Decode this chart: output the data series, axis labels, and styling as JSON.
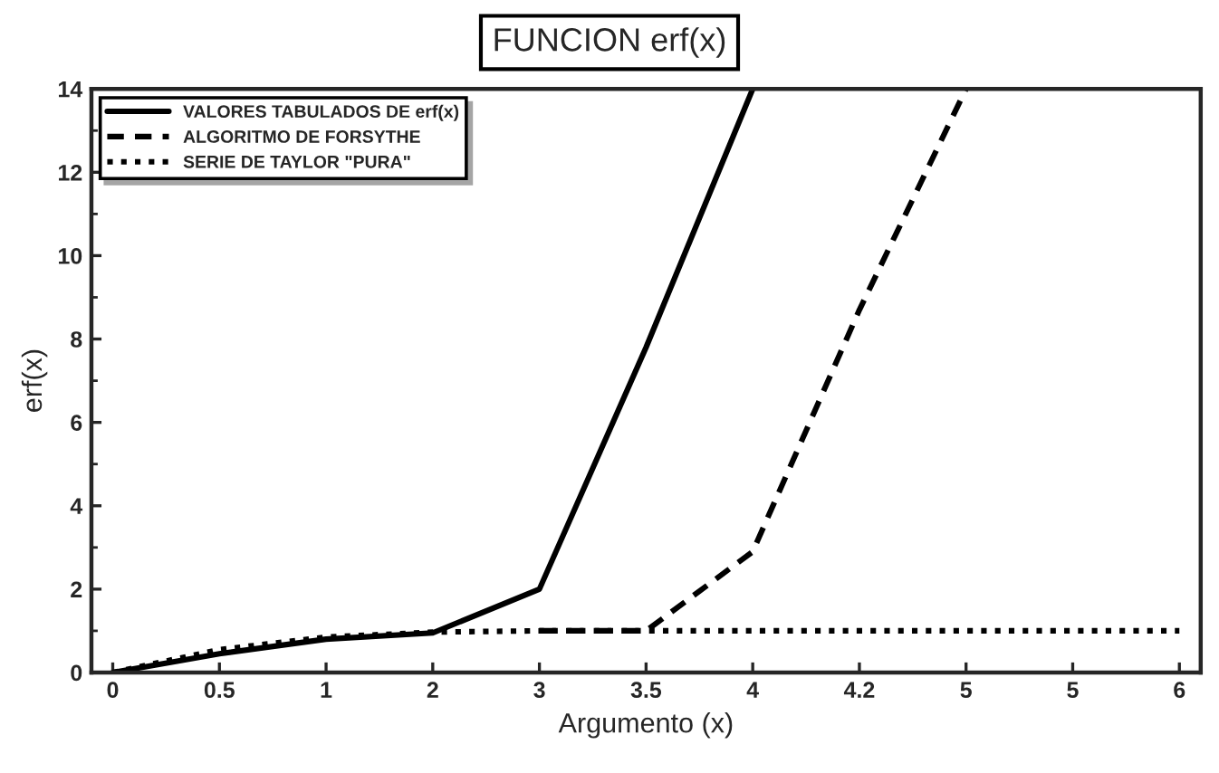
{
  "chart_data": {
    "type": "line",
    "title": "FUNCION erf(x)",
    "xlabel": "Argumento (x)",
    "ylabel": "erf(x)",
    "categories": [
      "0",
      "0.5",
      "1",
      "2",
      "3",
      "3.5",
      "4",
      "4.2",
      "5",
      "5",
      "6"
    ],
    "ylim": [
      0,
      14
    ],
    "yticks": [
      0,
      2,
      4,
      6,
      8,
      10,
      12,
      14
    ],
    "grid": false,
    "legend": "top left",
    "marker": "none",
    "series": [
      {
        "name": "VALORES TABULADOS DE erf(x)",
        "color": "#000000",
        "line_style": "solid",
        "values": [
          0,
          0.45,
          0.8,
          0.95,
          2.0,
          7.8,
          14,
          null,
          null,
          null,
          null
        ]
      },
      {
        "name": "ALGORITMO DE FORSYTHE",
        "color": "#000000",
        "line_style": "dashed",
        "values": [
          null,
          null,
          null,
          null,
          1.0,
          1.0,
          2.9,
          8.7,
          14,
          null,
          null
        ]
      },
      {
        "name": "SERIE DE TAYLOR \"PURA\"",
        "color": "#000000",
        "line_style": "dotted",
        "values": [
          0,
          0.55,
          0.85,
          0.97,
          1.0,
          1.0,
          1.0,
          1.0,
          1.0,
          1.0,
          1.0
        ]
      }
    ]
  }
}
